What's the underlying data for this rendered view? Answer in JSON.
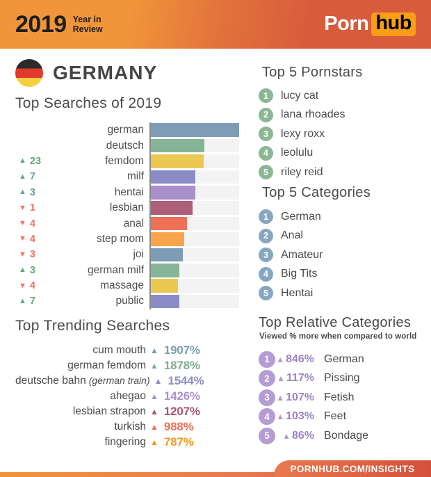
{
  "header": {
    "year": "2019",
    "tagline_line1": "Year in",
    "tagline_line2": "Review",
    "logo": {
      "porn": "Porn",
      "hub": "hub"
    }
  },
  "icons": {
    "up": "▲",
    "down": "▼"
  },
  "country": {
    "name": "GERMANY",
    "flag": "germany"
  },
  "colors": {
    "up_green": "#63a77d",
    "down_red": "#f3705a",
    "axis": "#8a8a8a",
    "track": "#f3f3f3",
    "heading_text": "#4a4a4a"
  },
  "top_searches": {
    "title": "Top Searches of 2019",
    "rows": [
      {
        "term": "german",
        "direction": "",
        "change": "",
        "value": 100,
        "color": "#7e9cb6"
      },
      {
        "term": "deutsch",
        "direction": "",
        "change": "",
        "value": 61,
        "color": "#85b596"
      },
      {
        "term": "femdom",
        "direction": "up",
        "change": "23",
        "value": 60,
        "color": "#ecc853"
      },
      {
        "term": "milf",
        "direction": "up",
        "change": "7",
        "value": 50,
        "color": "#8b8cc6"
      },
      {
        "term": "hentai",
        "direction": "up",
        "change": "3",
        "value": 50,
        "color": "#aa90ca"
      },
      {
        "term": "lesbian",
        "direction": "down",
        "change": "1",
        "value": 47,
        "color": "#ad5f7a"
      },
      {
        "term": "anal",
        "direction": "down",
        "change": "4",
        "value": 41,
        "color": "#ee7057"
      },
      {
        "term": "step mom",
        "direction": "down",
        "change": "4",
        "value": 38,
        "color": "#f8a44a"
      },
      {
        "term": "joi",
        "direction": "down",
        "change": "3",
        "value": 36,
        "color": "#7e9cb6"
      },
      {
        "term": "german milf",
        "direction": "up",
        "change": "3",
        "value": 32,
        "color": "#85b596"
      },
      {
        "term": "massage",
        "direction": "down",
        "change": "4",
        "value": 31,
        "color": "#ecc853"
      },
      {
        "term": "public",
        "direction": "up",
        "change": "7",
        "value": 32,
        "color": "#8b8cc6"
      }
    ]
  },
  "trending": {
    "title": "Top Trending Searches",
    "rows": [
      {
        "term": "cum mouth",
        "note": "",
        "percent": "1907%",
        "color": "#7e9cb6"
      },
      {
        "term": "german femdom",
        "note": "",
        "percent": "1878%",
        "color": "#7fae8d"
      },
      {
        "term": "deutsche bahn",
        "note": "(german train)",
        "percent": "1544%",
        "color": "#8b8cc6"
      },
      {
        "term": "ahegao",
        "note": "",
        "percent": "1426%",
        "color": "#aa90ca"
      },
      {
        "term": "lesbian strapon",
        "note": "",
        "percent": "1207%",
        "color": "#a9566f"
      },
      {
        "term": "turkish",
        "note": "",
        "percent": "988%",
        "color": "#ee7057"
      },
      {
        "term": "fingering",
        "note": "",
        "percent": "787%",
        "color": "#f8961f"
      }
    ]
  },
  "pornstars": {
    "title": "Top 5 Pornstars",
    "badge_color": "#8cb795",
    "items": [
      {
        "rank": "1",
        "name": "lucy cat"
      },
      {
        "rank": "2",
        "name": "lana rhoades"
      },
      {
        "rank": "3",
        "name": "lexy roxx"
      },
      {
        "rank": "4",
        "name": "leolulu"
      },
      {
        "rank": "5",
        "name": "riley reid"
      }
    ]
  },
  "categories": {
    "title": "Top 5 Categories",
    "badge_color": "#87a7c1",
    "items": [
      {
        "rank": "1",
        "name": "German"
      },
      {
        "rank": "2",
        "name": "Anal"
      },
      {
        "rank": "3",
        "name": "Amateur"
      },
      {
        "rank": "4",
        "name": "Big Tits"
      },
      {
        "rank": "5",
        "name": "Hentai"
      }
    ]
  },
  "relative": {
    "title": "Top Relative Categories",
    "subtitle": "Viewed % more when compared to world",
    "badge_color": "#b59cd4",
    "percent_color": "#9d84c6",
    "triangle_color": "#b19bd1",
    "items": [
      {
        "rank": "1",
        "percent": "846%",
        "name": "German"
      },
      {
        "rank": "2",
        "percent": "117%",
        "name": "Pissing"
      },
      {
        "rank": "3",
        "percent": "107%",
        "name": "Fetish"
      },
      {
        "rank": "4",
        "percent": "103%",
        "name": "Feet"
      },
      {
        "rank": "5",
        "percent": "86%",
        "name": "Bondage"
      }
    ]
  },
  "footer": {
    "url": "PORNHUB.COM/INSIGHTS"
  },
  "chart_data": [
    {
      "type": "bar",
      "orientation": "horizontal",
      "title": "Top Searches of 2019",
      "categories": [
        "german",
        "deutsch",
        "femdom",
        "milf",
        "hentai",
        "lesbian",
        "anal",
        "step mom",
        "joi",
        "german milf",
        "massage",
        "public"
      ],
      "values": [
        100,
        61,
        60,
        50,
        50,
        47,
        41,
        38,
        36,
        32,
        31,
        32
      ],
      "value_note": "bar length as % of the top search; no numeric axis shown",
      "rank_change": [
        "",
        "",
        "+23",
        "+7",
        "+3",
        "-1",
        "-4",
        "-4",
        "-3",
        "+3",
        "-4",
        "+7"
      ],
      "xlim": [
        0,
        100
      ],
      "grid": false,
      "legend": false
    },
    {
      "type": "table",
      "title": "Top Trending Searches",
      "columns": [
        "search",
        "increase"
      ],
      "rows": [
        [
          "cum mouth",
          "+1907%"
        ],
        [
          "german femdom",
          "+1878%"
        ],
        [
          "deutsche bahn (german train)",
          "+1544%"
        ],
        [
          "ahegao",
          "+1426%"
        ],
        [
          "lesbian strapon",
          "+1207%"
        ],
        [
          "turkish",
          "+988%"
        ],
        [
          "fingering",
          "+787%"
        ]
      ]
    },
    {
      "type": "table",
      "title": "Top Relative Categories",
      "columns": [
        "category",
        "viewed_more_vs_world"
      ],
      "rows": [
        [
          "German",
          "+846%"
        ],
        [
          "Pissing",
          "+117%"
        ],
        [
          "Fetish",
          "+107%"
        ],
        [
          "Feet",
          "+103%"
        ],
        [
          "Bondage",
          "+86%"
        ]
      ]
    }
  ]
}
